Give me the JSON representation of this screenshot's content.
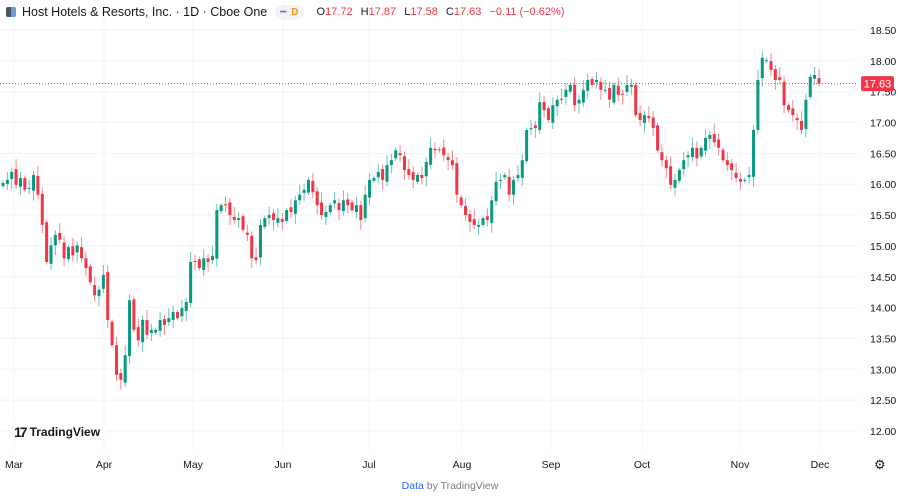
{
  "header": {
    "title": "Host Hotels & Resorts, Inc. · 1D · Cboe One",
    "badge": "D",
    "open_label": "O",
    "open": "17.72",
    "high_label": "H",
    "high": "17.87",
    "low_label": "L",
    "low": "17.58",
    "close_label": "C",
    "close": "17.63",
    "change": "−0.11 (−0.62%)"
  },
  "logo_text": "TradingView",
  "footer": {
    "data_link": "Data",
    "by_text": "by TradingView"
  },
  "icons": {
    "settings": "gear-icon",
    "symbol": "symbol-logo-icon"
  },
  "colors": {
    "up": "#089981",
    "down": "#f23645",
    "grid": "#f0f3fa",
    "price_line": "#f23645"
  },
  "chart_data": {
    "type": "candlestick",
    "title": "Host Hotels & Resorts, Inc. · 1D · Cboe One",
    "x_tick_labels": [
      "Mar",
      "Apr",
      "May",
      "Jun",
      "Jul",
      "Aug",
      "Sep",
      "Oct",
      "Nov",
      "Dec"
    ],
    "y_tick_labels": [
      "18.50",
      "18.00",
      "17.50",
      "17.00",
      "16.50",
      "16.00",
      "15.50",
      "15.00",
      "14.50",
      "14.00",
      "13.50",
      "13.00",
      "12.50",
      "12.00"
    ],
    "ylim": [
      12.0,
      18.5
    ],
    "grid": true,
    "current_price": 17.63,
    "last_candle": {
      "open": 17.72,
      "high": 17.87,
      "low": 17.58,
      "close": 17.63
    },
    "closes": [
      16.02,
      16.07,
      16.2,
      15.99,
      16.1,
      15.91,
      15.94,
      16.15,
      15.83,
      15.34,
      14.74,
      15.01,
      15.18,
      15.1,
      14.8,
      14.98,
      14.85,
      15.01,
      14.8,
      14.64,
      14.41,
      14.2,
      14.29,
      14.53,
      13.8,
      13.39,
      12.91,
      12.83,
      13.23,
      14.12,
      13.64,
      13.47,
      13.8,
      13.56,
      13.64,
      13.64,
      13.8,
      13.72,
      13.83,
      13.93,
      13.83,
      13.99,
      14.09,
      14.74,
      14.74,
      14.64,
      14.8,
      14.74,
      14.84,
      15.58,
      15.66,
      15.66,
      15.5,
      15.42,
      15.45,
      15.26,
      15.18,
      14.8,
      14.77,
      15.34,
      15.45,
      15.5,
      15.42,
      15.45,
      15.39,
      15.58,
      15.55,
      15.74,
      15.83,
      15.91,
      16.07,
      15.87,
      15.66,
      15.5,
      15.55,
      15.66,
      15.74,
      15.58,
      15.74,
      15.66,
      15.58,
      15.66,
      15.42,
      15.83,
      16.07,
      16.1,
      16.2,
      16.07,
      16.31,
      16.39,
      16.55,
      16.47,
      16.23,
      16.15,
      16.07,
      16.15,
      16.1,
      16.36,
      16.59,
      16.55,
      16.55,
      16.47,
      16.39,
      16.31,
      15.83,
      15.66,
      15.5,
      15.39,
      15.34,
      15.34,
      15.45,
      15.42,
      15.74,
      16.04,
      16.07,
      16.15,
      15.83,
      16.07,
      16.15,
      16.39,
      16.88,
      16.91,
      16.91,
      17.33,
      17.2,
      17.04,
      17.28,
      17.37,
      17.37,
      17.53,
      17.61,
      17.28,
      17.37,
      17.53,
      17.69,
      17.61,
      17.69,
      17.53,
      17.53,
      17.37,
      17.61,
      17.45,
      17.45,
      17.61,
      17.61,
      17.12,
      17.04,
      17.12,
      17.07,
      16.91,
      16.55,
      16.39,
      16.26,
      15.99,
      16.07,
      16.23,
      16.39,
      16.47,
      16.59,
      16.42,
      16.59,
      16.75,
      16.8,
      16.68,
      16.59,
      16.39,
      16.31,
      16.23,
      16.1,
      16.04,
      16.07,
      16.15,
      16.88,
      17.69,
      18.05,
      18.01,
      17.85,
      17.69,
      17.69,
      17.28,
      17.2,
      17.12,
      17.04,
      16.88,
      17.37,
      17.74,
      17.77,
      17.63
    ]
  }
}
